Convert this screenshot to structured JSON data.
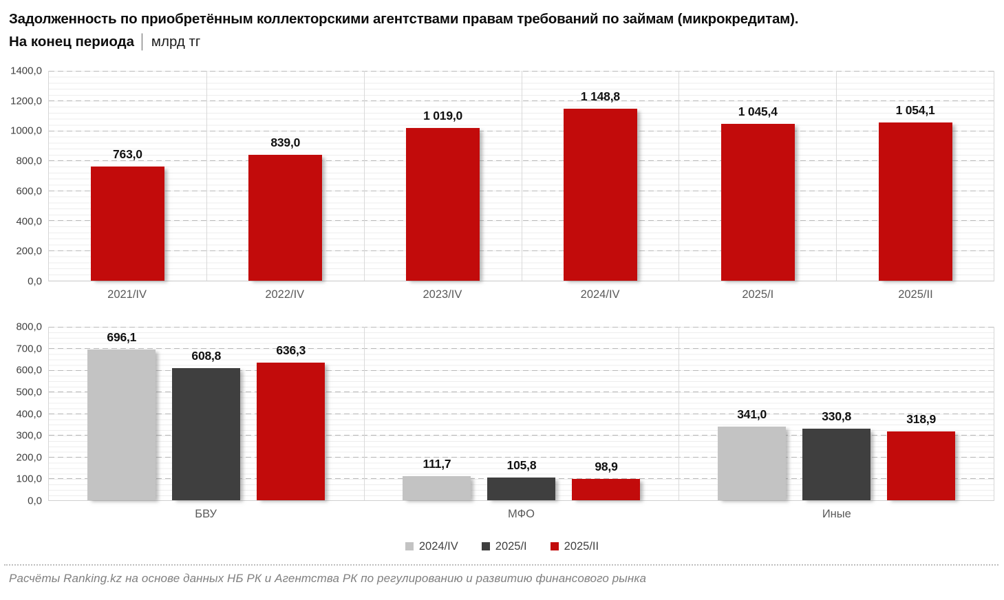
{
  "header": {
    "title_line1": "Задолженность по приобретённым коллекторскими агентствами правам требований по займам (микрокредитам).",
    "subtitle_bold": "На конец периода",
    "subtitle_divider": "│",
    "subtitle_unit": "млрд тг"
  },
  "colors": {
    "red": "#C20B0B",
    "light_gray": "#C3C3C3",
    "dark_gray": "#3F3F3F",
    "grid_dashed": "#B9B9B9",
    "axis_text": "#3F3F3F",
    "category_text": "#595959",
    "footer_text": "#7F7F7F"
  },
  "legend": [
    {
      "label": "2024/IV",
      "color": "#C3C3C3"
    },
    {
      "label": "2025/I",
      "color": "#3F3F3F"
    },
    {
      "label": "2025/II",
      "color": "#C20B0B"
    }
  ],
  "chart_data": [
    {
      "type": "bar",
      "title": "Задолженность по приобретённым коллекторскими агентствами правам требований по займам (микрокредитам), млрд тг",
      "categories": [
        "2021/IV",
        "2022/IV",
        "2023/IV",
        "2024/IV",
        "2025/I",
        "2025/II"
      ],
      "values": [
        763.0,
        839.0,
        1019.0,
        1148.8,
        1045.4,
        1054.1
      ],
      "labels": [
        "763,0",
        "839,0",
        "1 019,0",
        "1 148,8",
        "1 045,4",
        "1 054,1"
      ],
      "bar_color": "#C20B0B",
      "xlabel": "",
      "ylabel": "",
      "ylim": [
        0,
        1400
      ],
      "ytick_step": 200,
      "yticks": [
        "1400,0",
        "1200,0",
        "1000,0",
        "800,0",
        "600,0",
        "400,0",
        "200,0",
        "0,0"
      ],
      "grid": true,
      "legend_position": "none"
    },
    {
      "type": "bar",
      "title": "Задолженность по сегментам, млрд тг",
      "categories": [
        "БВУ",
        "МФО",
        "Иные"
      ],
      "series": [
        {
          "name": "2024/IV",
          "color": "#C3C3C3",
          "values": [
            696.1,
            111.7,
            341.0
          ],
          "labels": [
            "696,1",
            "111,7",
            "341,0"
          ]
        },
        {
          "name": "2025/I",
          "color": "#3F3F3F",
          "values": [
            608.8,
            105.8,
            330.8
          ],
          "labels": [
            "608,8",
            "105,8",
            "330,8"
          ]
        },
        {
          "name": "2025/II",
          "color": "#C20B0B",
          "values": [
            636.3,
            98.9,
            318.9
          ],
          "labels": [
            "636,3",
            "98,9",
            "318,9"
          ]
        }
      ],
      "xlabel": "",
      "ylabel": "",
      "ylim": [
        0,
        800
      ],
      "ytick_step": 100,
      "yticks": [
        "800,0",
        "700,0",
        "600,0",
        "500,0",
        "400,0",
        "300,0",
        "200,0",
        "100,0",
        "0,0"
      ],
      "grid": true,
      "legend_position": "bottom-center"
    }
  ],
  "footer": {
    "source": "Расчёты Ranking.kz на основе данных НБ РК и Агентства РК по регулированию и развитию финансового рынка"
  }
}
